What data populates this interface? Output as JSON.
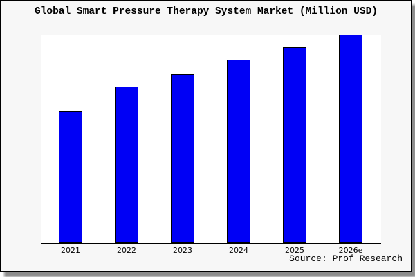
{
  "chart_data": {
    "type": "bar",
    "title": "Global Smart Pressure Therapy System Market (Million USD)",
    "categories": [
      "2021",
      "2022",
      "2023",
      "2024",
      "2025",
      "2026e"
    ],
    "values": [
      63,
      75,
      81,
      88,
      94,
      100
    ],
    "values_estimated": true,
    "xlabel": "",
    "ylabel": "",
    "ylim": [
      0,
      100
    ],
    "grid": false,
    "legend": false,
    "y_axis_visible": false,
    "bar_color": "#0000f5",
    "bar_edge_color": "#000000"
  },
  "source_note": "Source: Prof Research",
  "colors": {
    "card_background": "#f7f7f7",
    "plot_background": "#ffffff",
    "axis": "#000000",
    "text": "#000000",
    "shadow": "#777777"
  }
}
